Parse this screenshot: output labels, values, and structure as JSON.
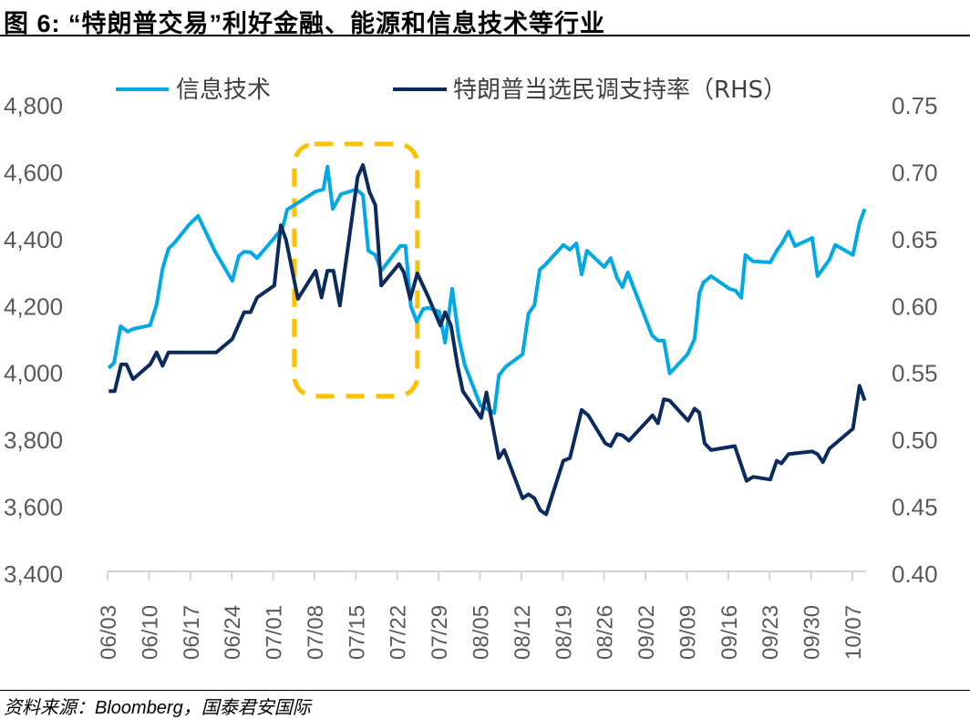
{
  "header": {
    "title": "图 6: “特朗普交易”利好金融、能源和信息技术等行业"
  },
  "footer": {
    "source": "资料来源：Bloomberg，国泰君安国际"
  },
  "chart_data": {
    "type": "line",
    "title": "图 6: “特朗普交易”利好金融、能源和信息技术等行业",
    "x_unit": "days since 06/03",
    "x_tick_labels": [
      "06/03",
      "06/10",
      "06/17",
      "06/24",
      "07/01",
      "07/08",
      "07/15",
      "07/22",
      "07/29",
      "08/05",
      "08/12",
      "08/19",
      "08/26",
      "09/02",
      "09/09",
      "09/16",
      "09/23",
      "09/30",
      "10/07"
    ],
    "x_tick_days": [
      0,
      7,
      14,
      21,
      28,
      35,
      42,
      49,
      56,
      63,
      70,
      77,
      84,
      91,
      98,
      105,
      112,
      119,
      126
    ],
    "xlim": [
      0,
      129
    ],
    "left_axis": {
      "ylim": [
        3400,
        4800
      ],
      "ticks": [
        4800,
        4600,
        4400,
        4200,
        4000,
        3800,
        3600,
        3400
      ],
      "tick_labels": [
        "4,800",
        "4,600",
        "4,400",
        "4,200",
        "4,000",
        "3,800",
        "3,600",
        "3,400"
      ]
    },
    "right_axis": {
      "ylim": [
        0.4,
        0.75
      ],
      "ticks": [
        0.75,
        0.7,
        0.65,
        0.6,
        0.55,
        0.5,
        0.45,
        0.4
      ],
      "tick_labels": [
        "0.75",
        "0.70",
        "0.65",
        "0.60",
        "0.55",
        "0.50",
        "0.45",
        "0.40"
      ]
    },
    "grid": false,
    "legend_position": "top",
    "series": [
      {
        "name": "信息技术",
        "axis": "left",
        "color": "#00A9E6",
        "x": [
          0.2,
          1.1,
          2.2,
          3.4,
          4.3,
          7.2,
          8.3,
          9.3,
          10.3,
          11.4,
          13.7,
          15.3,
          18.2,
          21.1,
          22.2,
          23.1,
          24.2,
          25.3,
          28.1,
          29.6,
          30.4,
          31.6,
          35.2,
          36.5,
          37.2,
          38.1,
          39.5,
          42.1,
          43.2,
          44.1,
          45.3,
          46.3,
          49.5,
          50.4,
          51.3,
          52.3,
          53.4,
          54.3,
          56.1,
          57.1,
          58.3,
          59.4,
          60.4,
          63.1,
          65.4,
          66.2,
          67.4,
          70.2,
          71.2,
          72.2,
          73.1,
          74.0,
          77.1,
          78.2,
          79.3,
          80.2,
          81.1,
          84.0,
          85.1,
          86.2,
          87.1,
          88.0,
          92.1,
          93.1,
          94.1,
          95.1,
          98.1,
          99.3,
          100.1,
          100.8,
          102.1,
          105.2,
          106.2,
          107.2,
          107.9,
          109.2,
          112.1,
          113.2,
          114.1,
          115.2,
          116.3,
          119.2,
          120.1,
          122.1,
          123.1,
          126.1,
          127.2,
          128.1
        ],
        "values": [
          4013,
          4029,
          4138,
          4122,
          4130,
          4141,
          4203,
          4310,
          4370,
          4389,
          4440,
          4468,
          4361,
          4274,
          4348,
          4361,
          4359,
          4342,
          4400,
          4432,
          4487,
          4500,
          4541,
          4547,
          4615,
          4489,
          4533,
          4547,
          4530,
          4364,
          4351,
          4304,
          4378,
          4378,
          4198,
          4152,
          4190,
          4193,
          4182,
          4089,
          4250,
          4105,
          4024,
          3901,
          3879,
          3991,
          4018,
          4054,
          4176,
          4201,
          4307,
          4321,
          4381,
          4367,
          4386,
          4293,
          4364,
          4315,
          4342,
          4282,
          4255,
          4299,
          4111,
          4095,
          4095,
          3997,
          4054,
          4100,
          4236,
          4269,
          4288,
          4250,
          4245,
          4223,
          4351,
          4332,
          4329,
          4364,
          4386,
          4421,
          4378,
          4402,
          4288,
          4337,
          4381,
          4351,
          4446,
          4489
        ]
      },
      {
        "name": "特朗普当选民调支持率（RHS）",
        "axis": "right",
        "color": "#0B2A5E",
        "x": [
          0.2,
          1.2,
          2.3,
          3.2,
          4.3,
          7.2,
          8.3,
          9.3,
          10.3,
          18.4,
          21.1,
          23.1,
          24.2,
          25.3,
          28.2,
          29.3,
          30.2,
          32.2,
          35.2,
          36.2,
          37.2,
          38.2,
          39.3,
          42.3,
          43.2,
          44.3,
          45.3,
          46.3,
          49.3,
          50.1,
          51.2,
          52.4,
          54.3,
          56.3,
          57.1,
          58.1,
          59.2,
          60.1,
          63.2,
          64.1,
          66.2,
          67.1,
          70.2,
          71.2,
          72.2,
          73.2,
          74.2,
          77.1,
          78.2,
          80.2,
          81.3,
          84.2,
          85.1,
          86.2,
          87.1,
          88.2,
          92.2,
          93.1,
          94.1,
          95.1,
          98.2,
          99.3,
          100.1,
          101.0,
          102.1,
          106.1,
          108.1,
          109.2,
          112.1,
          113.2,
          114.0,
          115.2,
          119.2,
          120.1,
          121.0,
          122.1,
          126.1,
          127.2,
          128.1
        ],
        "values": [
          0.536,
          0.536,
          0.556,
          0.556,
          0.545,
          0.556,
          0.565,
          0.555,
          0.565,
          0.565,
          0.575,
          0.595,
          0.595,
          0.606,
          0.615,
          0.66,
          0.649,
          0.605,
          0.626,
          0.606,
          0.626,
          0.626,
          0.6,
          0.696,
          0.705,
          0.685,
          0.675,
          0.615,
          0.631,
          0.625,
          0.605,
          0.624,
          0.606,
          0.585,
          0.595,
          0.585,
          0.555,
          0.536,
          0.516,
          0.535,
          0.486,
          0.492,
          0.456,
          0.459,
          0.456,
          0.447,
          0.444,
          0.484,
          0.486,
          0.522,
          0.518,
          0.497,
          0.495,
          0.504,
          0.503,
          0.499,
          0.518,
          0.512,
          0.53,
          0.529,
          0.514,
          0.523,
          0.52,
          0.497,
          0.492,
          0.495,
          0.469,
          0.472,
          0.47,
          0.484,
          0.482,
          0.489,
          0.491,
          0.489,
          0.483,
          0.493,
          0.508,
          0.54,
          0.529
        ]
      }
    ],
    "annotations": [
      {
        "type": "dashed-rounded-box",
        "color": "#FFC000",
        "x_range": [
          31.6,
          52.4
        ],
        "left_y_range": [
          3929,
          4683
        ]
      }
    ]
  }
}
